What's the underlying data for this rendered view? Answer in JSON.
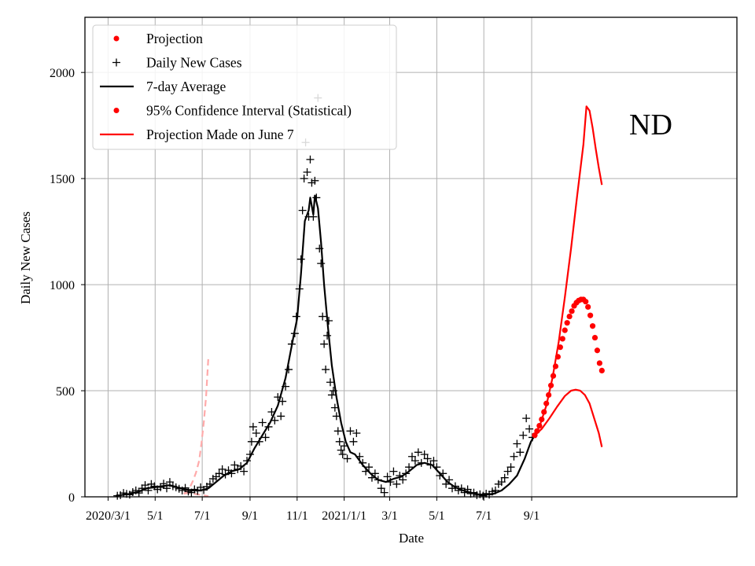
{
  "chart_data": {
    "type": "line",
    "xlabel": "Date",
    "ylabel": "Daily New Cases",
    "xlim": [
      -30,
      815
    ],
    "ylim": [
      0,
      2260
    ],
    "grid": true,
    "annotation": "ND",
    "x_ticks": [
      {
        "day": 0,
        "label": "2020/3/1"
      },
      {
        "day": 61,
        "label": "5/1"
      },
      {
        "day": 122,
        "label": "7/1"
      },
      {
        "day": 184,
        "label": "9/1"
      },
      {
        "day": 245,
        "label": "11/1"
      },
      {
        "day": 306,
        "label": "2021/1/1"
      },
      {
        "day": 365,
        "label": "3/1"
      },
      {
        "day": 426,
        "label": "5/1"
      },
      {
        "day": 487,
        "label": "7/1"
      },
      {
        "day": 549,
        "label": "9/1"
      }
    ],
    "y_ticks": [
      0,
      500,
      1000,
      1500,
      2000
    ],
    "legend": {
      "position": "upper-left",
      "entries": [
        {
          "label": "Projection",
          "marker": "dot",
          "color": "#ff0000"
        },
        {
          "label": "Daily New Cases",
          "marker": "plus",
          "color": "#000000"
        },
        {
          "label": "7-day Average",
          "marker": "line",
          "color": "#000000"
        },
        {
          "label": "95% Confidence Interval (Statistical)",
          "marker": "dot",
          "color": "#ff0000"
        },
        {
          "label": "Projection Made on June 7",
          "marker": "line",
          "color": "#ff0000"
        }
      ]
    },
    "series": [
      {
        "name": "7-day Average",
        "style": "line",
        "color": "#000000",
        "points": [
          [
            10,
            5
          ],
          [
            20,
            10
          ],
          [
            30,
            15
          ],
          [
            40,
            25
          ],
          [
            50,
            40
          ],
          [
            60,
            45
          ],
          [
            70,
            50
          ],
          [
            80,
            55
          ],
          [
            90,
            45
          ],
          [
            100,
            35
          ],
          [
            110,
            30
          ],
          [
            120,
            30
          ],
          [
            130,
            40
          ],
          [
            140,
            70
          ],
          [
            150,
            100
          ],
          [
            160,
            120
          ],
          [
            170,
            130
          ],
          [
            180,
            160
          ],
          [
            190,
            230
          ],
          [
            200,
            290
          ],
          [
            210,
            350
          ],
          [
            220,
            430
          ],
          [
            230,
            560
          ],
          [
            240,
            750
          ],
          [
            245,
            840
          ],
          [
            250,
            1050
          ],
          [
            255,
            1300
          ],
          [
            260,
            1350
          ],
          [
            262,
            1410
          ],
          [
            266,
            1330
          ],
          [
            268,
            1420
          ],
          [
            272,
            1360
          ],
          [
            276,
            1200
          ],
          [
            280,
            1000
          ],
          [
            285,
            800
          ],
          [
            290,
            620
          ],
          [
            296,
            470
          ],
          [
            302,
            350
          ],
          [
            308,
            260
          ],
          [
            314,
            210
          ],
          [
            320,
            200
          ],
          [
            330,
            150
          ],
          [
            340,
            110
          ],
          [
            350,
            80
          ],
          [
            360,
            70
          ],
          [
            370,
            85
          ],
          [
            380,
            95
          ],
          [
            390,
            120
          ],
          [
            400,
            150
          ],
          [
            410,
            160
          ],
          [
            420,
            150
          ],
          [
            430,
            110
          ],
          [
            440,
            70
          ],
          [
            450,
            45
          ],
          [
            460,
            30
          ],
          [
            470,
            20
          ],
          [
            480,
            12
          ],
          [
            490,
            10
          ],
          [
            500,
            15
          ],
          [
            510,
            30
          ],
          [
            520,
            60
          ],
          [
            530,
            100
          ],
          [
            540,
            180
          ],
          [
            548,
            260
          ],
          [
            553,
            290
          ]
        ]
      },
      {
        "name": "Daily New Cases",
        "style": "plus",
        "color": "#000000",
        "points": [
          [
            12,
            5
          ],
          [
            16,
            8
          ],
          [
            20,
            18
          ],
          [
            24,
            14
          ],
          [
            28,
            10
          ],
          [
            32,
            22
          ],
          [
            36,
            30
          ],
          [
            40,
            18
          ],
          [
            44,
            40
          ],
          [
            48,
            55
          ],
          [
            52,
            30
          ],
          [
            56,
            60
          ],
          [
            60,
            50
          ],
          [
            64,
            35
          ],
          [
            68,
            45
          ],
          [
            72,
            62
          ],
          [
            76,
            40
          ],
          [
            80,
            70
          ],
          [
            84,
            50
          ],
          [
            88,
            45
          ],
          [
            92,
            38
          ],
          [
            96,
            30
          ],
          [
            100,
            42
          ],
          [
            104,
            25
          ],
          [
            108,
            20
          ],
          [
            112,
            35
          ],
          [
            116,
            28
          ],
          [
            120,
            45
          ],
          [
            124,
            32
          ],
          [
            128,
            48
          ],
          [
            132,
            60
          ],
          [
            136,
            85
          ],
          [
            140,
            95
          ],
          [
            144,
            110
          ],
          [
            148,
            130
          ],
          [
            152,
            105
          ],
          [
            156,
            125
          ],
          [
            160,
            110
          ],
          [
            164,
            150
          ],
          [
            168,
            130
          ],
          [
            172,
            145
          ],
          [
            176,
            120
          ],
          [
            180,
            170
          ],
          [
            184,
            200
          ],
          [
            186,
            260
          ],
          [
            188,
            330
          ],
          [
            192,
            300
          ],
          [
            196,
            260
          ],
          [
            200,
            350
          ],
          [
            204,
            280
          ],
          [
            208,
            330
          ],
          [
            212,
            400
          ],
          [
            216,
            360
          ],
          [
            220,
            470
          ],
          [
            224,
            380
          ],
          [
            226,
            450
          ],
          [
            230,
            520
          ],
          [
            234,
            600
          ],
          [
            238,
            720
          ],
          [
            242,
            770
          ],
          [
            244,
            850
          ],
          [
            248,
            980
          ],
          [
            250,
            1120
          ],
          [
            252,
            1350
          ],
          [
            254,
            1500
          ],
          [
            256,
            1670
          ],
          [
            258,
            1530
          ],
          [
            260,
            1320
          ],
          [
            262,
            1590
          ],
          [
            264,
            1480
          ],
          [
            266,
            1320
          ],
          [
            268,
            1490
          ],
          [
            270,
            1410
          ],
          [
            272,
            1880
          ],
          [
            274,
            1170
          ],
          [
            276,
            1100
          ],
          [
            278,
            850
          ],
          [
            280,
            720
          ],
          [
            282,
            600
          ],
          [
            284,
            760
          ],
          [
            286,
            830
          ],
          [
            288,
            540
          ],
          [
            290,
            480
          ],
          [
            292,
            500
          ],
          [
            294,
            420
          ],
          [
            296,
            380
          ],
          [
            298,
            310
          ],
          [
            300,
            260
          ],
          [
            302,
            220
          ],
          [
            304,
            200
          ],
          [
            306,
            240
          ],
          [
            310,
            180
          ],
          [
            314,
            310
          ],
          [
            318,
            260
          ],
          [
            322,
            300
          ],
          [
            326,
            190
          ],
          [
            330,
            160
          ],
          [
            334,
            120
          ],
          [
            338,
            140
          ],
          [
            342,
            90
          ],
          [
            346,
            110
          ],
          [
            350,
            80
          ],
          [
            354,
            40
          ],
          [
            358,
            20
          ],
          [
            362,
            95
          ],
          [
            366,
            70
          ],
          [
            370,
            120
          ],
          [
            374,
            60
          ],
          [
            378,
            100
          ],
          [
            382,
            80
          ],
          [
            386,
            110
          ],
          [
            390,
            140
          ],
          [
            394,
            190
          ],
          [
            398,
            170
          ],
          [
            402,
            210
          ],
          [
            406,
            160
          ],
          [
            410,
            200
          ],
          [
            414,
            180
          ],
          [
            418,
            150
          ],
          [
            422,
            170
          ],
          [
            426,
            140
          ],
          [
            430,
            100
          ],
          [
            434,
            110
          ],
          [
            438,
            60
          ],
          [
            442,
            80
          ],
          [
            446,
            40
          ],
          [
            450,
            50
          ],
          [
            454,
            30
          ],
          [
            458,
            40
          ],
          [
            462,
            20
          ],
          [
            466,
            35
          ],
          [
            470,
            15
          ],
          [
            474,
            20
          ],
          [
            478,
            8
          ],
          [
            482,
            12
          ],
          [
            486,
            5
          ],
          [
            490,
            15
          ],
          [
            494,
            10
          ],
          [
            498,
            25
          ],
          [
            502,
            30
          ],
          [
            506,
            60
          ],
          [
            510,
            70
          ],
          [
            514,
            90
          ],
          [
            518,
            120
          ],
          [
            522,
            140
          ],
          [
            526,
            190
          ],
          [
            530,
            250
          ],
          [
            534,
            210
          ],
          [
            538,
            290
          ],
          [
            542,
            370
          ],
          [
            546,
            320
          ],
          [
            550,
            280
          ]
        ]
      },
      {
        "name": "Projection",
        "style": "dot",
        "color": "#ff0000",
        "points": [
          [
            553,
            290
          ],
          [
            556,
            310
          ],
          [
            559,
            335
          ],
          [
            562,
            365
          ],
          [
            565,
            400
          ],
          [
            568,
            440
          ],
          [
            571,
            480
          ],
          [
            574,
            525
          ],
          [
            577,
            570
          ],
          [
            580,
            615
          ],
          [
            583,
            660
          ],
          [
            586,
            705
          ],
          [
            589,
            745
          ],
          [
            592,
            785
          ],
          [
            595,
            820
          ],
          [
            598,
            850
          ],
          [
            601,
            875
          ],
          [
            604,
            900
          ],
          [
            607,
            915
          ],
          [
            610,
            925
          ],
          [
            613,
            930
          ],
          [
            616,
            930
          ],
          [
            619,
            920
          ],
          [
            622,
            895
          ],
          [
            625,
            855
          ],
          [
            628,
            805
          ],
          [
            631,
            750
          ],
          [
            634,
            690
          ],
          [
            637,
            630
          ],
          [
            640,
            595
          ]
        ]
      },
      {
        "name": "95% Confidence Interval (Statistical) Upper",
        "style": "line",
        "color": "#ff0000",
        "points": [
          [
            553,
            290
          ],
          [
            560,
            340
          ],
          [
            568,
            430
          ],
          [
            576,
            560
          ],
          [
            584,
            730
          ],
          [
            592,
            940
          ],
          [
            600,
            1170
          ],
          [
            608,
            1420
          ],
          [
            616,
            1660
          ],
          [
            620,
            1840
          ],
          [
            624,
            1820
          ],
          [
            628,
            1740
          ],
          [
            632,
            1640
          ],
          [
            636,
            1550
          ],
          [
            640,
            1470
          ]
        ]
      },
      {
        "name": "95% Confidence Interval (Statistical) Lower",
        "style": "line",
        "color": "#ff0000",
        "points": [
          [
            553,
            290
          ],
          [
            562,
            320
          ],
          [
            572,
            370
          ],
          [
            582,
            425
          ],
          [
            592,
            475
          ],
          [
            600,
            500
          ],
          [
            606,
            505
          ],
          [
            612,
            500
          ],
          [
            618,
            480
          ],
          [
            624,
            440
          ],
          [
            630,
            370
          ],
          [
            636,
            300
          ],
          [
            640,
            235
          ]
        ]
      },
      {
        "name": "Projection Made on June 7",
        "style": "dashed",
        "color": "#ffaaaa",
        "points": [
          [
            98,
            15
          ],
          [
            102,
            25
          ],
          [
            106,
            45
          ],
          [
            110,
            75
          ],
          [
            114,
            115
          ],
          [
            118,
            170
          ],
          [
            121,
            250
          ],
          [
            124,
            350
          ],
          [
            127,
            470
          ],
          [
            130,
            660
          ]
        ]
      },
      {
        "name": "Projection Made on June 7 Lower",
        "style": "dashed",
        "color": "#ffaaaa",
        "points": [
          [
            98,
            15
          ],
          [
            104,
            18
          ],
          [
            110,
            15
          ],
          [
            116,
            12
          ],
          [
            122,
            8
          ],
          [
            130,
            3
          ]
        ]
      }
    ]
  }
}
